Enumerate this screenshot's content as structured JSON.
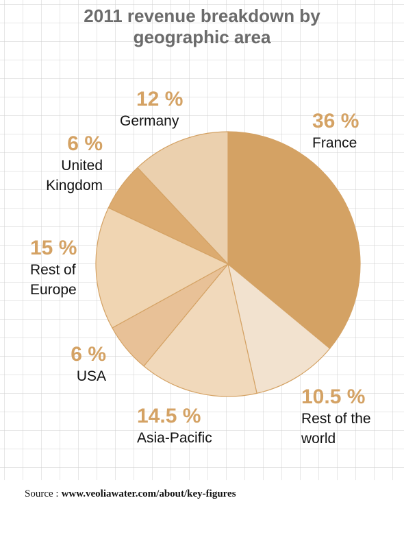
{
  "chart_data": {
    "type": "pie",
    "title": "2011 revenue breakdown by geographic area",
    "categories": [
      "France",
      "Rest of the world",
      "Asia-Pacific",
      "USA",
      "Rest of Europe",
      "United Kingdom",
      "Germany"
    ],
    "values": [
      36,
      10.5,
      14.5,
      6,
      15,
      6,
      12
    ],
    "value_labels": [
      "36 %",
      "10.5 %",
      "14.5 %",
      "6 %",
      "15 %",
      "6 %",
      "12 %"
    ],
    "colors": [
      "#d4a264",
      "#f2e2cf",
      "#f1d9bb",
      "#e8c197",
      "#f0d5b2",
      "#dcab70",
      "#ebd0ae"
    ],
    "source_label": "Source :",
    "source_url": "www.veoliawater.com/about/key-figures"
  }
}
